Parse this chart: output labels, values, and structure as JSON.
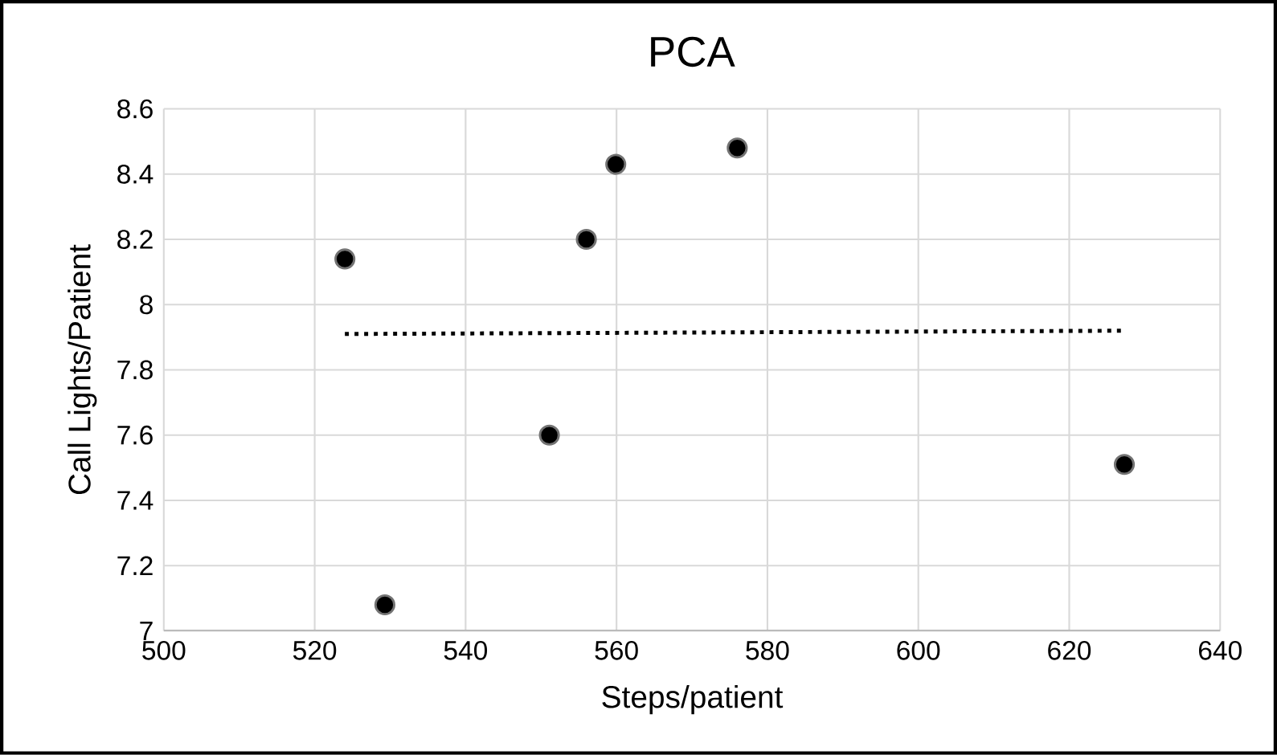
{
  "chart_data": {
    "type": "scatter",
    "title": "PCA",
    "xlabel": "Steps/patient",
    "ylabel": "Call Lights/Patient",
    "xlim": [
      500,
      640
    ],
    "ylim": [
      7,
      8.6
    ],
    "xticks": [
      500,
      520,
      540,
      560,
      580,
      600,
      620,
      640
    ],
    "yticks": [
      7,
      7.2,
      7.4,
      7.6,
      7.8,
      8,
      8.2,
      8.4,
      8.6
    ],
    "grid": true,
    "series": [
      {
        "color": "#000000",
        "marker": "circle",
        "x": [
          524,
          529.3,
          551.1,
          556,
          559.9,
          576,
          627.3
        ],
        "values": [
          8.14,
          7.08,
          7.6,
          8.2,
          8.43,
          8.48,
          7.51
        ]
      },
      {
        "type": "line",
        "color": "#000000",
        "line_style": "dotted",
        "marker": "none",
        "x": [
          524,
          627
        ],
        "values": [
          7.91,
          7.92
        ]
      }
    ]
  }
}
